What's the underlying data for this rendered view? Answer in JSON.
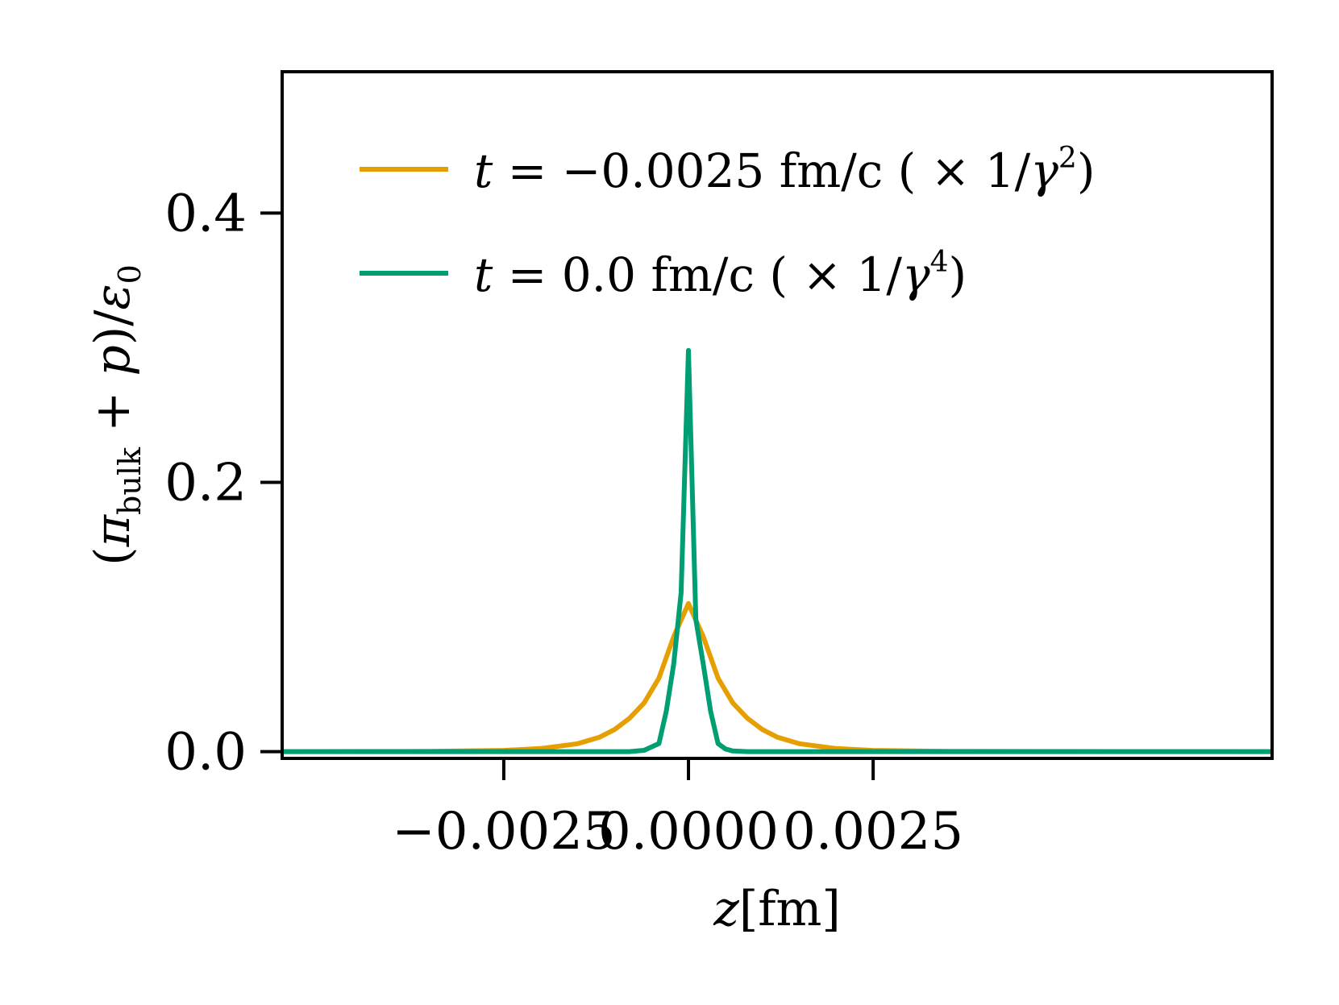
{
  "chart_data": {
    "type": "line",
    "xlabel": {
      "var": "z",
      "unit": "[fm]"
    },
    "ylabel": {
      "open": "(",
      "pi": "π",
      "sub": "bulk",
      "plus": " + ",
      "p": "p",
      "close": ")/",
      "eps": "ε",
      "eps_sub": "0"
    },
    "xlim": [
      -0.0055,
      0.0079
    ],
    "ylim": [
      -0.005,
      0.505
    ],
    "xticks": [
      {
        "value": -0.0025,
        "label": "−0.0025"
      },
      {
        "value": 0.0,
        "label": "0.0000"
      },
      {
        "value": 0.0025,
        "label": "0.0025"
      }
    ],
    "yticks": [
      {
        "value": 0.0,
        "label": "0.0"
      },
      {
        "value": 0.2,
        "label": "0.2"
      },
      {
        "value": 0.4,
        "label": "0.4"
      }
    ],
    "grid": false,
    "legend_position": "top-right",
    "series": [
      {
        "name": "t = −0.0025 fm/c ( × 1/γ²)",
        "legend": {
          "t": "t",
          "mid": " = −0.0025 fm/c ( × 1/",
          "gamma": "γ",
          "sup": "2",
          "close": ")"
        },
        "color": "#E69F00",
        "peak": 0.11,
        "width": 0.00052,
        "x": [
          -0.0055,
          -0.0035,
          -0.0025,
          -0.002,
          -0.0015,
          -0.0012,
          -0.001,
          -0.0008,
          -0.0006,
          -0.0004,
          -0.0002,
          0.0,
          0.0002,
          0.0004,
          0.0006,
          0.0008,
          0.001,
          0.0012,
          0.0015,
          0.002,
          0.0025,
          0.0035,
          0.0079
        ],
        "y": [
          0.0,
          0.0002,
          0.0009,
          0.0023,
          0.0059,
          0.0108,
          0.0164,
          0.0247,
          0.0362,
          0.0546,
          0.0854,
          0.11,
          0.0854,
          0.0546,
          0.0362,
          0.0247,
          0.0164,
          0.0108,
          0.0059,
          0.0023,
          0.0009,
          0.0002,
          0.0
        ]
      },
      {
        "name": "t = 0.0 fm/c ( × 1/γ⁴)",
        "legend": {
          "t": "t",
          "mid": " = 0.0 fm/c ( × 1/",
          "gamma": "γ",
          "sup": "4",
          "close": ")"
        },
        "color": "#009E73",
        "x": [
          -0.0055,
          -0.0008,
          -0.0006,
          -0.0004,
          -0.0003,
          -0.0002,
          -0.0001,
          0.0,
          0.0001,
          0.0002,
          0.0003,
          0.0004,
          0.0005,
          0.0006,
          0.0008,
          0.0079
        ],
        "y": [
          0.0,
          0.0,
          0.001,
          0.006,
          0.03,
          0.065,
          0.118,
          0.298,
          0.098,
          0.065,
          0.03,
          0.006,
          0.002,
          0.0005,
          0.0,
          0.0
        ]
      }
    ]
  }
}
